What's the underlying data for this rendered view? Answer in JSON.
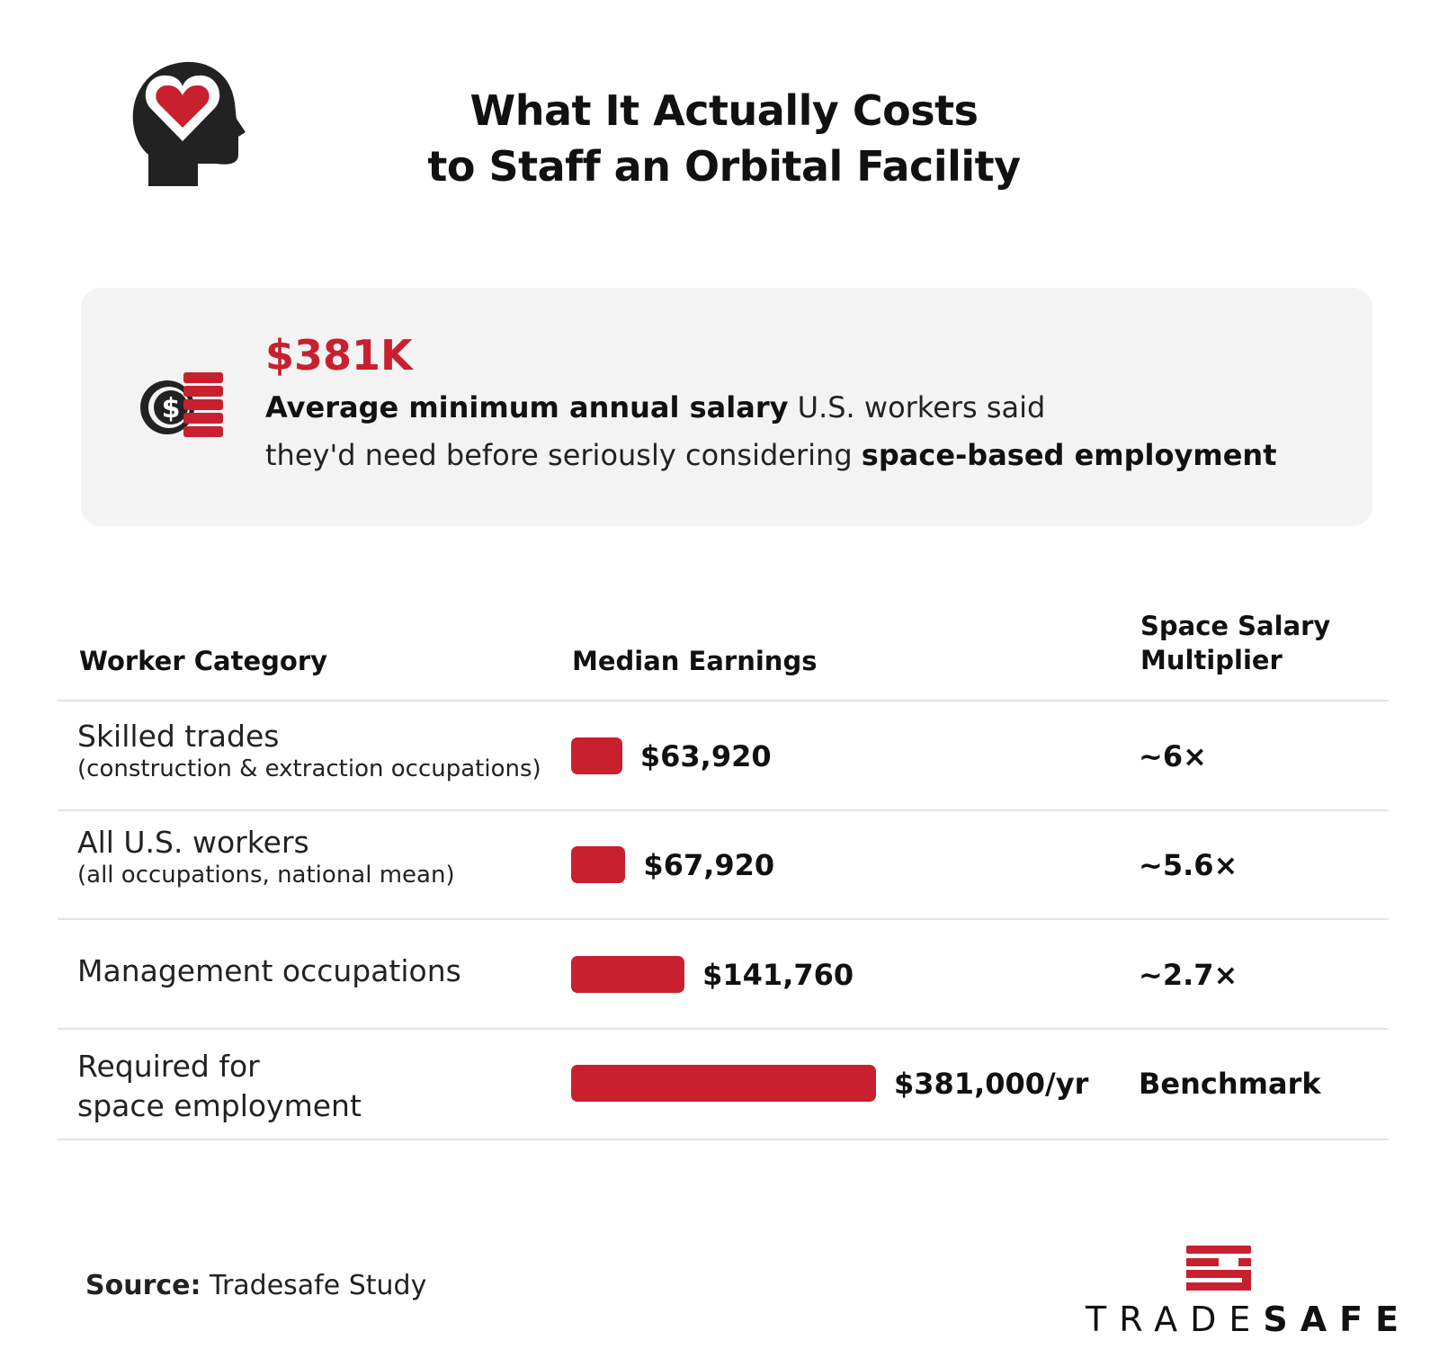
{
  "header": {
    "title_line1": "What It Actually Costs",
    "title_line2": "to Staff an Orbital Facility",
    "icon": "head-heart-icon"
  },
  "highlight": {
    "value": "$381K",
    "icon": "coin-stack-icon",
    "bold1": "Average minimum annual salary",
    "text1": " U.S. workers said",
    "text2": "they'd need before seriously considering ",
    "bold2": "space-based employment"
  },
  "chart_data": {
    "type": "table",
    "columns": [
      "Worker Category",
      "Median Earnings",
      "Space Salary Multiplier"
    ],
    "column3_line1": "Space Salary",
    "column3_line2": "Multiplier",
    "rows": [
      {
        "category": "Skilled trades",
        "sub": "(construction & extraction occupations)",
        "value": 63920,
        "label": "$63,920",
        "multiplier": "~6×"
      },
      {
        "category": "All U.S. workers",
        "sub": "(all occupations, national mean)",
        "value": 67920,
        "label": "$67,920",
        "multiplier": "~5.6×"
      },
      {
        "category": "Management occupations",
        "sub": "",
        "value": 141760,
        "label": "$141,760",
        "multiplier": "~2.7×"
      },
      {
        "category": "Required for",
        "category2": "space employment",
        "sub": "",
        "value": 381000,
        "label": "$381,000/yr",
        "multiplier": "Benchmark"
      }
    ],
    "bar_color": "#c8202f"
  },
  "footer": {
    "source_label": "Source:",
    "source_text": " Tradesafe Study",
    "logo_light": "TRADE",
    "logo_bold": "SAFE"
  }
}
